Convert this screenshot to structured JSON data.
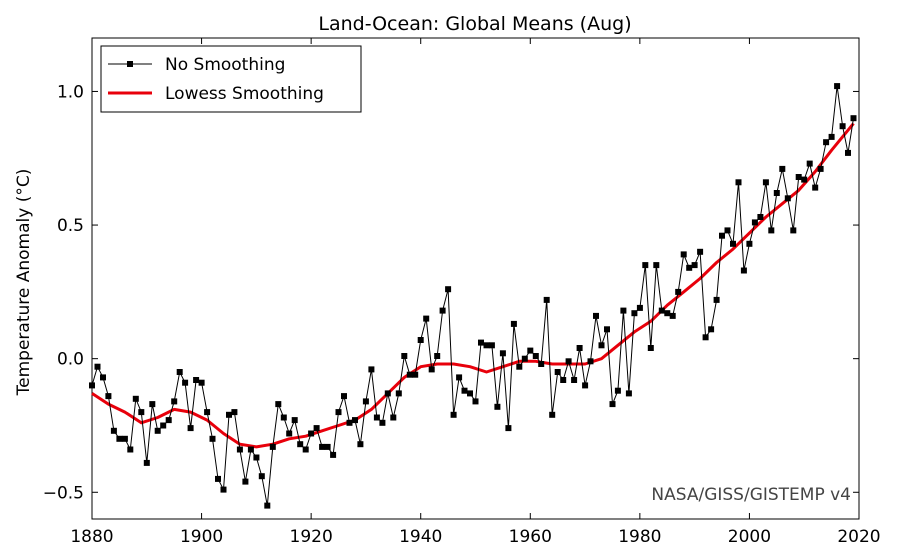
{
  "chart_data": {
    "type": "line",
    "title": "Land-Ocean: Global Means (Aug)",
    "xlabel": "",
    "ylabel": "Temperature Anomaly (°C)",
    "xlim": [
      1880,
      2020
    ],
    "ylim": [
      -0.6,
      1.2
    ],
    "xticks": [
      1880,
      1900,
      1920,
      1940,
      1960,
      1980,
      2000,
      2020
    ],
    "yticks": [
      -0.5,
      0.0,
      0.5,
      1.0
    ],
    "ytick_labels": [
      "−0.5",
      "0.0",
      "0.5",
      "1.0"
    ],
    "grid": false,
    "legend_position": "top-left",
    "annotation": "NASA/GISS/GISTEMP v4",
    "colors": {
      "raw": "#000000",
      "smooth": "#e8000b"
    },
    "series": [
      {
        "name": "No Smoothing",
        "style": "black line with square markers",
        "x_start": 1880,
        "values": [
          -0.1,
          -0.03,
          -0.07,
          -0.14,
          -0.27,
          -0.3,
          -0.3,
          -0.34,
          -0.15,
          -0.2,
          -0.39,
          -0.17,
          -0.27,
          -0.25,
          -0.23,
          -0.16,
          -0.05,
          -0.09,
          -0.26,
          -0.08,
          -0.09,
          -0.2,
          -0.3,
          -0.45,
          -0.49,
          -0.21,
          -0.2,
          -0.34,
          -0.46,
          -0.34,
          -0.37,
          -0.44,
          -0.55,
          -0.33,
          -0.17,
          -0.22,
          -0.28,
          -0.23,
          -0.32,
          -0.34,
          -0.28,
          -0.26,
          -0.33,
          -0.33,
          -0.36,
          -0.2,
          -0.14,
          -0.24,
          -0.23,
          -0.32,
          -0.16,
          -0.04,
          -0.22,
          -0.24,
          -0.13,
          -0.22,
          -0.13,
          0.01,
          -0.06,
          -0.06,
          0.07,
          0.15,
          -0.04,
          0.01,
          0.18,
          0.26,
          -0.21,
          -0.07,
          -0.12,
          -0.13,
          -0.16,
          0.06,
          0.05,
          0.05,
          -0.18,
          0.02,
          -0.26,
          0.13,
          -0.03,
          0.0,
          0.03,
          0.01,
          -0.02,
          0.22,
          -0.21,
          -0.05,
          -0.08,
          -0.01,
          -0.08,
          0.04,
          -0.1,
          -0.01,
          0.16,
          0.05,
          0.11,
          -0.17,
          -0.12,
          0.18,
          -0.13,
          0.17,
          0.19,
          0.35,
          0.04,
          0.35,
          0.18,
          0.17,
          0.16,
          0.25,
          0.39,
          0.34,
          0.35,
          0.4,
          0.08,
          0.11,
          0.22,
          0.46,
          0.48,
          0.43,
          0.66,
          0.33,
          0.43,
          0.51,
          0.53,
          0.66,
          0.48,
          0.62,
          0.71,
          0.6,
          0.48,
          0.68,
          0.67,
          0.73,
          0.64,
          0.71,
          0.81,
          0.83,
          1.02,
          0.87,
          0.77,
          0.9
        ]
      },
      {
        "name": "Lowess Smoothing",
        "style": "thick red line",
        "x": [
          1880,
          1883,
          1886,
          1889,
          1892,
          1895,
          1898,
          1901,
          1904,
          1907,
          1910,
          1913,
          1916,
          1919,
          1922,
          1925,
          1928,
          1931,
          1934,
          1937,
          1940,
          1943,
          1946,
          1949,
          1952,
          1955,
          1958,
          1961,
          1964,
          1967,
          1970,
          1973,
          1976,
          1979,
          1982,
          1985,
          1988,
          1991,
          1994,
          1997,
          2000,
          2003,
          2006,
          2009,
          2012,
          2015,
          2019
        ],
        "values": [
          -0.13,
          -0.17,
          -0.2,
          -0.24,
          -0.22,
          -0.19,
          -0.2,
          -0.23,
          -0.28,
          -0.32,
          -0.33,
          -0.32,
          -0.3,
          -0.29,
          -0.27,
          -0.25,
          -0.23,
          -0.19,
          -0.13,
          -0.07,
          -0.03,
          -0.02,
          -0.02,
          -0.03,
          -0.05,
          -0.03,
          -0.01,
          -0.01,
          -0.02,
          -0.02,
          -0.02,
          0.0,
          0.05,
          0.1,
          0.14,
          0.2,
          0.25,
          0.3,
          0.36,
          0.41,
          0.47,
          0.53,
          0.58,
          0.63,
          0.7,
          0.78,
          0.88
        ]
      }
    ]
  }
}
